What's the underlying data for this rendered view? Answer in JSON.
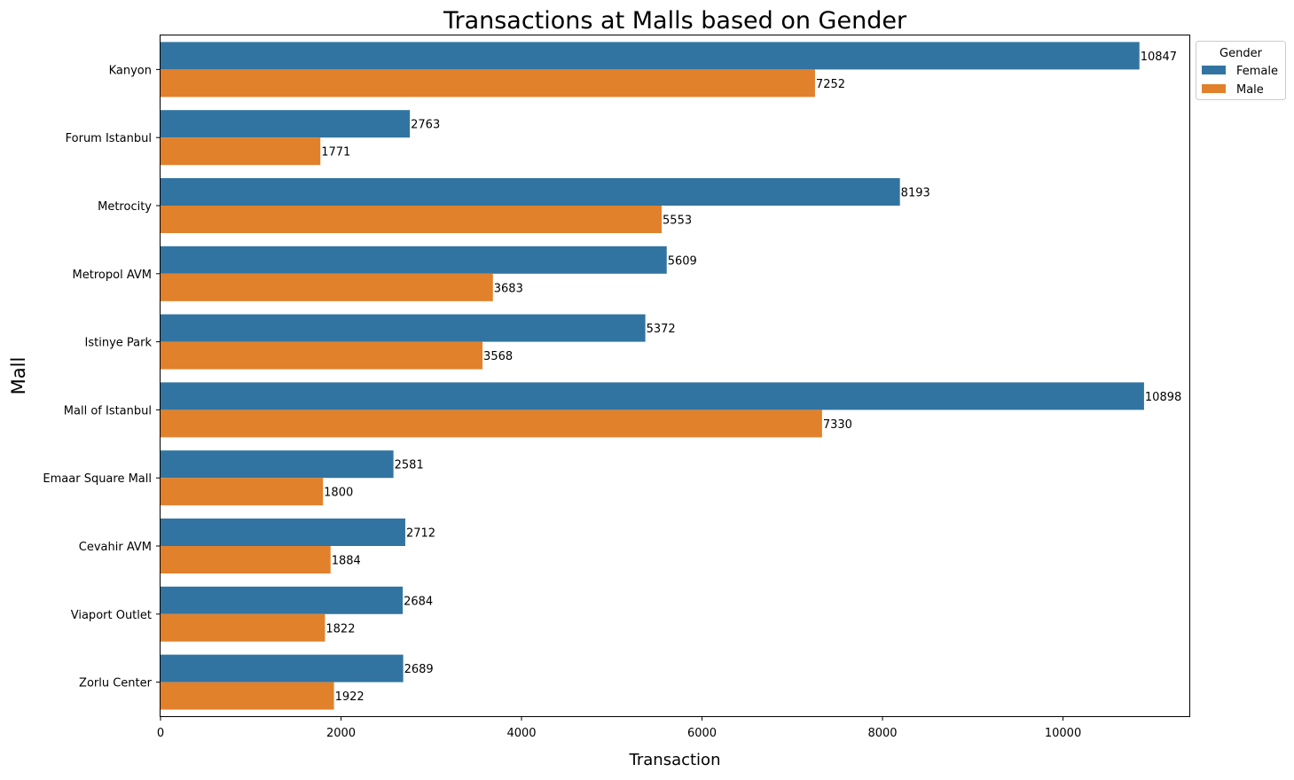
{
  "chart_data": {
    "type": "bar",
    "orientation": "horizontal",
    "title": "Transactions at Malls based on Gender",
    "xlabel": "Transaction",
    "ylabel": "Mall",
    "xlim": [
      0,
      11400
    ],
    "xticks": [
      0,
      2000,
      4000,
      6000,
      8000,
      10000
    ],
    "grid": false,
    "legend_title": "Gender",
    "legend_position": "top-right",
    "categories": [
      "Kanyon",
      "Forum Istanbul",
      "Metrocity",
      "Metropol AVM",
      "Istinye Park",
      "Mall of Istanbul",
      "Emaar Square Mall",
      "Cevahir AVM",
      "Viaport Outlet",
      "Zorlu Center"
    ],
    "series": [
      {
        "name": "Female",
        "color": "#3274a1",
        "values": [
          10847,
          2763,
          8193,
          5609,
          5372,
          10898,
          2581,
          2712,
          2684,
          2689
        ]
      },
      {
        "name": "Male",
        "color": "#e1812c",
        "values": [
          7252,
          1771,
          5553,
          3683,
          3568,
          7330,
          1800,
          1884,
          1822,
          1922
        ]
      }
    ]
  }
}
